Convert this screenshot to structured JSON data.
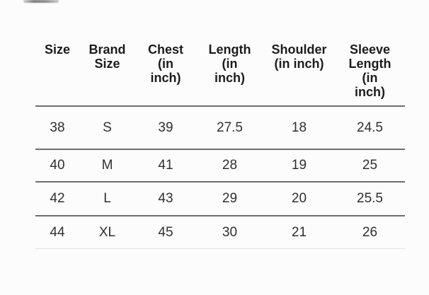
{
  "colors": {
    "background": "#fcfcfc",
    "rule_dark": "#6e6e6e",
    "rule_light": "#e2e2e2",
    "header_text": "#1c1c1c",
    "cell_text": "#303030"
  },
  "table": {
    "columns": [
      {
        "key": "size",
        "label": "Size",
        "lines": [
          "Size"
        ]
      },
      {
        "key": "brand-size",
        "label": "Brand Size",
        "lines": [
          "Brand",
          "Size"
        ]
      },
      {
        "key": "chest",
        "label": "Chest (in inch)",
        "lines": [
          "Chest",
          "(in",
          "inch)"
        ]
      },
      {
        "key": "length",
        "label": "Length (in inch)",
        "lines": [
          "Length",
          "(in",
          "inch)"
        ]
      },
      {
        "key": "shoulder",
        "label": "Shoulder (in inch)",
        "lines": [
          "Shoulder",
          "(in inch)"
        ]
      },
      {
        "key": "sleeve-length",
        "label": "Sleeve Length (in inch)",
        "lines": [
          "Sleeve",
          "Length",
          "(in",
          "inch)"
        ]
      }
    ],
    "rows": [
      [
        "38",
        "S",
        "39",
        "27.5",
        "18",
        "24.5"
      ],
      [
        "40",
        "M",
        "41",
        "28",
        "19",
        "25"
      ],
      [
        "42",
        "L",
        "43",
        "29",
        "20",
        "25.5"
      ],
      [
        "44",
        "XL",
        "45",
        "30",
        "21",
        "26"
      ]
    ]
  }
}
